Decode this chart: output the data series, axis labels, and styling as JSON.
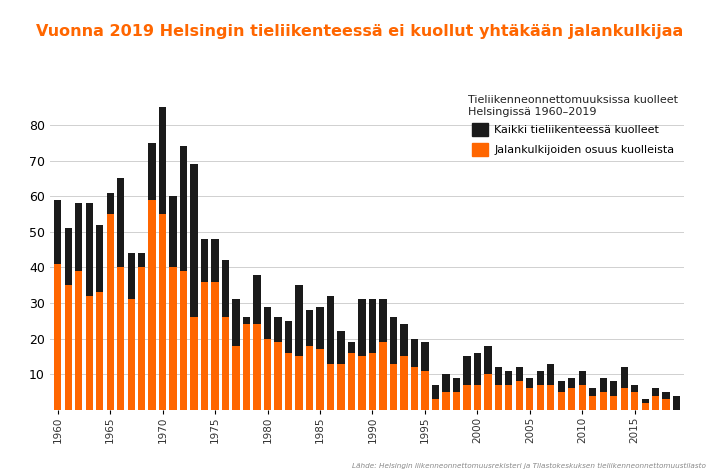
{
  "title": "Vuonna 2019 Helsingin tieliikenteessä ei kuollut yhtäkään jalankulkijaa",
  "title_color": "#FF6600",
  "legend_title": "Tieliikenneonnettomuuksissa kuolleet\nHelsingissä 1960–2019",
  "legend_label_black": "Kaikki tieliikenteessä kuolleet",
  "legend_label_orange": "Jalankulkijoiden osuus kuolleista",
  "source_text": "Lähde: Helsingin liikenneonnettomuusrekisteri ja Tilastokeskuksen tieliikenneonnettomuustilasto",
  "years": [
    1960,
    1961,
    1962,
    1963,
    1964,
    1965,
    1966,
    1967,
    1968,
    1969,
    1970,
    1971,
    1972,
    1973,
    1974,
    1975,
    1976,
    1977,
    1978,
    1979,
    1980,
    1981,
    1982,
    1983,
    1984,
    1985,
    1986,
    1987,
    1988,
    1989,
    1990,
    1991,
    1992,
    1993,
    1994,
    1995,
    1996,
    1997,
    1998,
    1999,
    2000,
    2001,
    2002,
    2003,
    2004,
    2005,
    2006,
    2007,
    2008,
    2009,
    2010,
    2011,
    2012,
    2013,
    2014,
    2015,
    2016,
    2017,
    2018,
    2019
  ],
  "total": [
    59,
    51,
    58,
    58,
    52,
    61,
    65,
    44,
    44,
    75,
    85,
    60,
    74,
    69,
    48,
    48,
    42,
    31,
    26,
    38,
    29,
    26,
    25,
    35,
    28,
    29,
    32,
    22,
    19,
    31,
    31,
    31,
    26,
    24,
    20,
    19,
    7,
    10,
    9,
    15,
    16,
    18,
    12,
    11,
    12,
    9,
    11,
    13,
    8,
    9,
    11,
    6,
    9,
    8,
    12,
    7,
    3,
    6,
    5,
    4
  ],
  "pedestrians": [
    41,
    35,
    39,
    32,
    33,
    55,
    40,
    31,
    40,
    59,
    55,
    40,
    39,
    26,
    36,
    36,
    26,
    18,
    24,
    24,
    20,
    19,
    16,
    15,
    18,
    17,
    13,
    13,
    16,
    15,
    16,
    19,
    13,
    15,
    12,
    11,
    3,
    5,
    5,
    7,
    7,
    10,
    7,
    7,
    8,
    6,
    7,
    7,
    5,
    6,
    7,
    4,
    5,
    4,
    6,
    5,
    2,
    4,
    3,
    0
  ],
  "color_total": "#1a1a1a",
  "color_pedestrians": "#FF6600",
  "background_color": "#ffffff",
  "ylim": [
    0,
    90
  ],
  "yticks": [
    10,
    20,
    30,
    40,
    50,
    60,
    70,
    80
  ],
  "grid_color": "#d0d0d0",
  "bar_width": 0.7
}
